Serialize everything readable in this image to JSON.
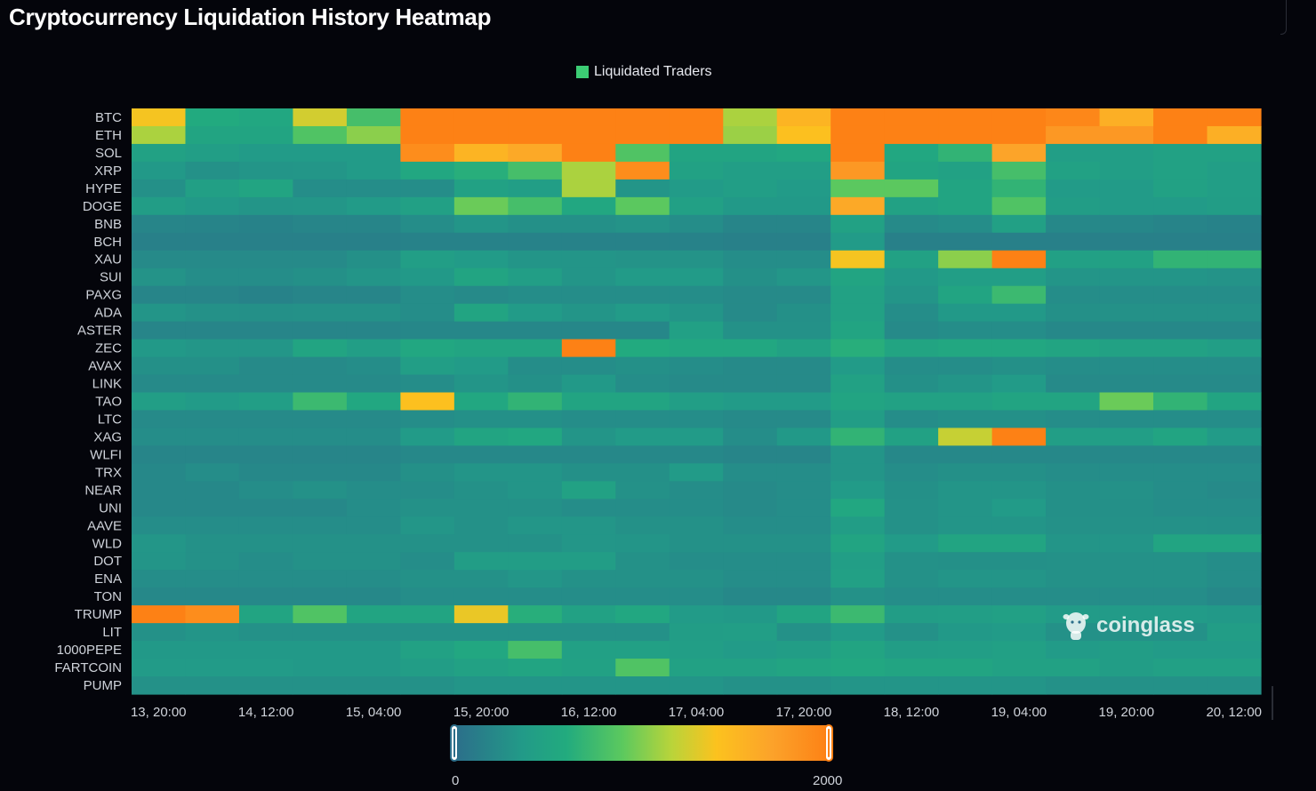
{
  "page": {
    "title": "Cryptocurrency Liquidation History Heatmap"
  },
  "legend": {
    "label": "Liquidated Traders",
    "color": "#3ccc74"
  },
  "visual_map": {
    "min_label": "0",
    "max_label": "2000"
  },
  "watermark": {
    "text": "coinglass"
  },
  "colors": {
    "scale": [
      "#2c6e8a",
      "#229a88",
      "#22ab7e",
      "#5cc95e",
      "#b9d43a",
      "#fcc21e",
      "#fca22a",
      "#fd8115"
    ],
    "background": "#04050b",
    "axis_text": "#cfd3da"
  },
  "chart_data": {
    "type": "heatmap",
    "title": "Cryptocurrency Liquidation History Heatmap",
    "series_name": "Liquidated Traders",
    "value_range": [
      0,
      2000
    ],
    "x_tick_labels": [
      "13, 20:00",
      "14, 12:00",
      "15, 04:00",
      "15, 20:00",
      "16, 12:00",
      "17, 04:00",
      "17, 20:00",
      "18, 12:00",
      "19, 04:00",
      "19, 20:00",
      "20, 12:00"
    ],
    "y_categories": [
      "BTC",
      "ETH",
      "SOL",
      "XRP",
      "HYPE",
      "DOGE",
      "BNB",
      "BCH",
      "XAU",
      "SUI",
      "PAXG",
      "ADA",
      "ASTER",
      "ZEC",
      "AVAX",
      "LINK",
      "TAO",
      "LTC",
      "XAG",
      "WLFI",
      "TRX",
      "NEAR",
      "UNI",
      "AAVE",
      "WLD",
      "DOT",
      "ENA",
      "TON",
      "TRUMP",
      "LIT",
      "1000PEPE",
      "FARTCOIN",
      "PUMP"
    ],
    "columns": 21,
    "values": [
      [
        1400,
        550,
        500,
        1250,
        750,
        2000,
        2000,
        2000,
        2000,
        2000,
        2000,
        1100,
        1550,
        2000,
        2000,
        2000,
        2000,
        1950,
        1600,
        2000,
        2000
      ],
      [
        1100,
        450,
        450,
        800,
        1000,
        2000,
        2000,
        2000,
        2000,
        2000,
        2000,
        1050,
        1450,
        2000,
        2000,
        2000,
        2000,
        1800,
        1800,
        2000,
        1600
      ],
      [
        400,
        350,
        300,
        300,
        300,
        1900,
        1550,
        1650,
        2000,
        800,
        450,
        450,
        500,
        2000,
        500,
        650,
        1700,
        350,
        350,
        400,
        400
      ],
      [
        280,
        230,
        250,
        260,
        300,
        500,
        600,
        750,
        1100,
        1900,
        400,
        350,
        350,
        1800,
        450,
        400,
        750,
        400,
        350,
        400,
        350
      ],
      [
        220,
        370,
        450,
        200,
        200,
        200,
        400,
        350,
        1100,
        250,
        300,
        350,
        300,
        850,
        850,
        450,
        650,
        300,
        300,
        400,
        350
      ],
      [
        330,
        280,
        250,
        260,
        300,
        380,
        900,
        750,
        500,
        850,
        380,
        280,
        280,
        1650,
        400,
        450,
        800,
        330,
        300,
        300,
        330
      ],
      [
        150,
        140,
        130,
        150,
        150,
        200,
        250,
        220,
        220,
        240,
        200,
        150,
        150,
        400,
        180,
        200,
        380,
        170,
        160,
        140,
        130
      ],
      [
        120,
        120,
        120,
        120,
        120,
        130,
        130,
        130,
        130,
        130,
        130,
        120,
        120,
        300,
        120,
        120,
        120,
        120,
        120,
        120,
        120
      ],
      [
        180,
        180,
        180,
        180,
        220,
        350,
        300,
        250,
        250,
        240,
        240,
        200,
        200,
        1400,
        400,
        1000,
        2000,
        380,
        400,
        650,
        650
      ],
      [
        240,
        200,
        200,
        220,
        250,
        280,
        450,
        350,
        250,
        300,
        300,
        220,
        260,
        450,
        280,
        350,
        350,
        250,
        250,
        250,
        240
      ],
      [
        150,
        150,
        130,
        150,
        150,
        200,
        180,
        200,
        200,
        200,
        200,
        180,
        180,
        400,
        250,
        450,
        700,
        200,
        200,
        200,
        200
      ],
      [
        250,
        230,
        220,
        230,
        230,
        200,
        450,
        300,
        250,
        300,
        250,
        180,
        220,
        400,
        200,
        280,
        280,
        220,
        230,
        230,
        230
      ],
      [
        150,
        150,
        150,
        150,
        150,
        160,
        160,
        160,
        160,
        160,
        380,
        230,
        230,
        450,
        180,
        200,
        200,
        170,
        170,
        170,
        170
      ],
      [
        280,
        260,
        260,
        450,
        350,
        500,
        450,
        450,
        2000,
        550,
        500,
        500,
        400,
        600,
        450,
        500,
        500,
        450,
        400,
        400,
        350
      ],
      [
        220,
        220,
        180,
        180,
        200,
        350,
        300,
        200,
        200,
        220,
        200,
        180,
        180,
        300,
        200,
        200,
        220,
        200,
        200,
        200,
        200
      ],
      [
        180,
        180,
        180,
        180,
        180,
        200,
        250,
        220,
        280,
        200,
        180,
        180,
        180,
        400,
        220,
        250,
        300,
        180,
        180,
        180,
        180
      ],
      [
        350,
        300,
        350,
        700,
        500,
        1450,
        500,
        650,
        450,
        450,
        350,
        300,
        300,
        450,
        400,
        400,
        450,
        450,
        900,
        650,
        450
      ],
      [
        180,
        180,
        180,
        180,
        180,
        200,
        220,
        220,
        200,
        200,
        200,
        180,
        180,
        330,
        200,
        220,
        220,
        200,
        200,
        200,
        200
      ],
      [
        200,
        200,
        200,
        200,
        200,
        300,
        450,
        500,
        250,
        300,
        300,
        200,
        280,
        650,
        400,
        1200,
        2000,
        350,
        350,
        450,
        300
      ],
      [
        150,
        150,
        150,
        150,
        150,
        170,
        170,
        170,
        170,
        170,
        170,
        150,
        150,
        250,
        170,
        170,
        170,
        170,
        170,
        170,
        170
      ],
      [
        170,
        200,
        170,
        170,
        170,
        220,
        250,
        250,
        220,
        220,
        300,
        200,
        200,
        250,
        200,
        220,
        220,
        200,
        200,
        200,
        200
      ],
      [
        170,
        170,
        200,
        230,
        200,
        200,
        230,
        250,
        400,
        230,
        200,
        180,
        200,
        300,
        220,
        250,
        250,
        220,
        230,
        200,
        180
      ],
      [
        170,
        170,
        170,
        170,
        200,
        230,
        230,
        230,
        200,
        200,
        200,
        180,
        200,
        500,
        230,
        250,
        300,
        220,
        220,
        200,
        200
      ],
      [
        200,
        200,
        200,
        200,
        200,
        260,
        230,
        260,
        260,
        230,
        230,
        200,
        200,
        330,
        230,
        250,
        250,
        230,
        230,
        230,
        220
      ],
      [
        260,
        230,
        230,
        230,
        230,
        230,
        230,
        230,
        260,
        250,
        230,
        230,
        230,
        450,
        300,
        450,
        450,
        250,
        250,
        450,
        450
      ],
      [
        250,
        230,
        200,
        230,
        230,
        200,
        330,
        330,
        330,
        230,
        200,
        200,
        200,
        350,
        230,
        220,
        220,
        230,
        230,
        230,
        200
      ],
      [
        200,
        200,
        200,
        200,
        200,
        230,
        230,
        260,
        230,
        230,
        230,
        200,
        200,
        380,
        230,
        250,
        250,
        230,
        230,
        230,
        200
      ],
      [
        170,
        170,
        170,
        170,
        170,
        200,
        200,
        200,
        200,
        200,
        200,
        170,
        170,
        230,
        200,
        200,
        200,
        200,
        200,
        200,
        170
      ],
      [
        2000,
        1900,
        450,
        800,
        450,
        450,
        1350,
        600,
        400,
        500,
        300,
        280,
        450,
        700,
        330,
        350,
        380,
        300,
        300,
        300,
        280
      ],
      [
        230,
        250,
        230,
        230,
        230,
        230,
        230,
        230,
        230,
        230,
        330,
        350,
        230,
        300,
        230,
        280,
        300,
        230,
        230,
        230,
        330
      ],
      [
        280,
        280,
        280,
        280,
        280,
        400,
        500,
        750,
        380,
        380,
        350,
        300,
        330,
        450,
        330,
        350,
        380,
        300,
        330,
        300,
        300
      ],
      [
        300,
        300,
        300,
        280,
        280,
        330,
        400,
        450,
        400,
        800,
        400,
        400,
        450,
        500,
        450,
        450,
        400,
        400,
        330,
        380,
        380
      ],
      [
        230,
        230,
        230,
        230,
        230,
        230,
        250,
        250,
        250,
        250,
        250,
        230,
        230,
        250,
        250,
        250,
        250,
        230,
        230,
        230,
        230
      ]
    ]
  }
}
